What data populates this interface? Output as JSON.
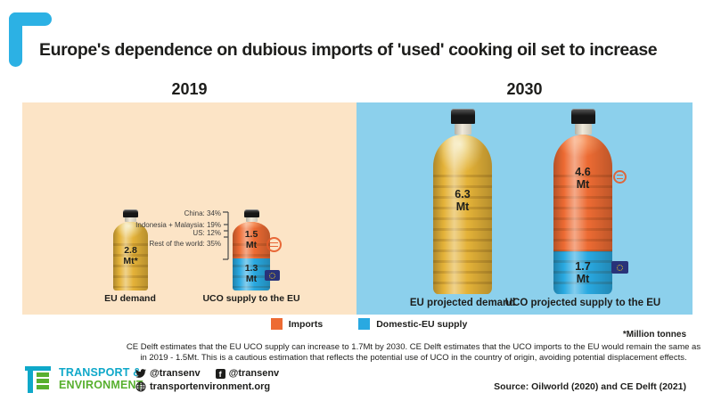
{
  "title": "Europe's dependence on dubious imports of 'used' cooking oil set to increase",
  "footnote_unit": "*Million tonnes",
  "note": "CE Delft estimates that the EU UCO supply can increase to 1.7Mt by 2030. CE Delft estimates that the UCO imports to the EU would remain the same as in 2019 - 1.5Mt. This is a cautious estimation that reflects the potential use of UCO in the country of origin, avoiding potential displacement effects.",
  "footer": {
    "logo_line1": "TRANSPORT &",
    "logo_line2": "ENVIRONMENT",
    "twitter_handle": "@transenv",
    "facebook_handle": "@transenv",
    "website": "transportenvironment.org",
    "source": "Source: Oilworld (2020) and CE Delft (2021)"
  },
  "icons": {
    "stamp": "import-stamp-icon",
    "eu_flag": "eu-flag-icon",
    "twitter": "twitter-bird-icon",
    "facebook": "facebook-icon",
    "globe": "globe-icon"
  },
  "colors": {
    "accent_cyan": "#2cb1e4",
    "panel_2019_bg": "#fce4c6",
    "panel_2030_bg": "#8cd0ec",
    "imports_orange": "#ed6b33",
    "domestic_blue": "#29a9e1",
    "oil_yellow": "#e4b238",
    "te_teal": "#0fa8c9",
    "te_green": "#58b02f",
    "eu_flag_navy": "#293379",
    "eu_star_yellow": "#f7d117"
  },
  "chart_data": {
    "type": "bar",
    "subtype": "pictorial stacked bottle chart",
    "title": "Europe's dependence on dubious imports of 'used' cooking oil set to increase",
    "unit": "Million tonnes (Mt)",
    "legend_position": "bottom-center",
    "legend": [
      {
        "label": "Imports",
        "color": "#ed6b33"
      },
      {
        "label": "Domestic-EU supply",
        "color": "#29a9e1"
      }
    ],
    "groups": [
      {
        "year": "2019",
        "bars": [
          {
            "label": "EU demand",
            "total": 2.8,
            "segments": [
              {
                "name": "EU demand",
                "value": 2.8,
                "value_label": "2.8",
                "unit_label": "Mt*",
                "color": "#e4b238"
              }
            ]
          },
          {
            "label": "UCO supply to the EU",
            "total": 2.8,
            "segments": [
              {
                "name": "Imports",
                "value": 1.5,
                "value_label": "1.5",
                "unit_label": "Mt",
                "color": "#ed6b33"
              },
              {
                "name": "Domestic-EU supply",
                "value": 1.3,
                "value_label": "1.3",
                "unit_label": "Mt",
                "color": "#29a9e1"
              }
            ]
          }
        ],
        "import_origin_breakdown": [
          "China: 34%",
          "Indonesia + Malaysia: 19%",
          "US: 12%",
          "Rest of the world: 35%"
        ]
      },
      {
        "year": "2030",
        "bars": [
          {
            "label": "EU projected demand",
            "total": 6.3,
            "segments": [
              {
                "name": "EU projected demand",
                "value": 6.3,
                "value_label": "6.3",
                "unit_label": "Mt",
                "color": "#e4b238"
              }
            ]
          },
          {
            "label": "UCO projected supply to the EU",
            "total": 6.3,
            "segments": [
              {
                "name": "Imports",
                "value": 4.6,
                "value_label": "4.6",
                "unit_label": "Mt",
                "color": "#ed6b33"
              },
              {
                "name": "Domestic-EU supply",
                "value": 1.7,
                "value_label": "1.7",
                "unit_label": "Mt",
                "color": "#29a9e1"
              }
            ]
          }
        ]
      }
    ]
  }
}
